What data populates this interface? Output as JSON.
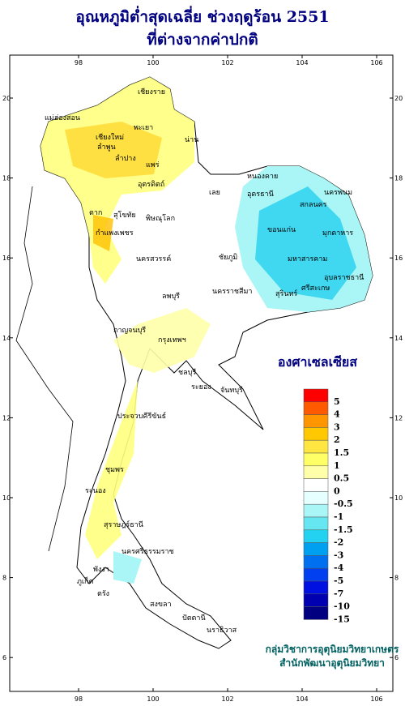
{
  "header": {
    "title": [
      "อุณหภูมิต่ำสุดเฉลี่ย ช่วงฤดูร้อน 2551",
      "ที่ต่างจากค่าปกติ"
    ]
  },
  "map": {
    "xticks": [
      98,
      100,
      102,
      104,
      106
    ],
    "yticks": [
      20,
      18,
      16,
      14,
      12,
      10,
      8,
      6
    ],
    "places": [
      "เชียงราย",
      "แม่ฮ่องสอน",
      "เชียงใหม่",
      "ลำพูน",
      "ลำปาง",
      "พะเยา",
      "น่าน",
      "แพร่",
      "อุตรดิตถ์",
      "ตาก",
      "สุโขทัย",
      "พิษณุโลก",
      "กำแพงเพชร",
      "นครสวรรค์",
      "หนองคาย",
      "อุดรธานี",
      "เลย",
      "สกลนคร",
      "นครพนม",
      "มุกดาหาร",
      "ขอนแก่น",
      "ชัยภูมิ",
      "มหาสารคาม",
      "อุบลราชธานี",
      "นครราชสีมา",
      "สุรินทร์",
      "ศรีสะเกษ",
      "ลพบุรี",
      "กาญจนบุรี",
      "กรุงเทพฯ",
      "ชลบุรี",
      "ระยอง",
      "จันทบุรี",
      "ประจวบคีรีขันธ์",
      "ชุมพร",
      "ระนอง",
      "สุราษฎร์ธานี",
      "นครศรีธรรมราช",
      "ภูเก็ต",
      "พังงา",
      "ตรัง",
      "สงขลา",
      "ปัตตานี",
      "นราธิวาส"
    ]
  },
  "legend": {
    "title": "องศาเซลเซียส",
    "items": [
      {
        "label": 5,
        "color": "#ff0000"
      },
      {
        "label": 4,
        "color": "#ff5a00"
      },
      {
        "label": 3,
        "color": "#ff9600"
      },
      {
        "label": 2,
        "color": "#ffc800"
      },
      {
        "label": 1.5,
        "color": "#ffe640"
      },
      {
        "label": 1,
        "color": "#ffff66"
      },
      {
        "label": 0.5,
        "color": "#ffffaa"
      },
      {
        "label": 0,
        "color": "#ffffff"
      },
      {
        "label": -0.5,
        "color": "#e6ffff"
      },
      {
        "label": -1,
        "color": "#aaf5f5"
      },
      {
        "label": -1.5,
        "color": "#66e6f0"
      },
      {
        "label": -2,
        "color": "#22d2f0"
      },
      {
        "label": -3,
        "color": "#00a0f0"
      },
      {
        "label": -4,
        "color": "#0070f0"
      },
      {
        "label": -5,
        "color": "#0040f0"
      },
      {
        "label": -7,
        "color": "#0010e0"
      },
      {
        "label": -10,
        "color": "#0000b0"
      },
      {
        "label": -15,
        "color": "#000080"
      }
    ]
  },
  "footer": {
    "credits": [
      "กลุ่มวิชาการอุตุนิยมวิทยาเกษตร",
      "สำนักพัฒนาอุตุนิยมวิทยา"
    ]
  }
}
